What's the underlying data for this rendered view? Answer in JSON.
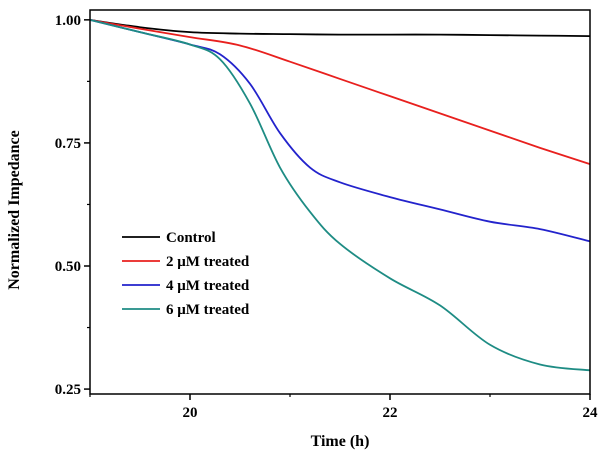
{
  "chart_data": {
    "type": "line",
    "title": "",
    "xlabel": "Time (h)",
    "ylabel": "Normalized Impedance",
    "xlim": [
      19.0,
      24.0
    ],
    "ylim": [
      0.24,
      1.02
    ],
    "xticks": [
      20,
      22,
      24
    ],
    "xtick_labels": [
      "20",
      "22",
      "24"
    ],
    "yticks": [
      0.25,
      0.5,
      0.75,
      1.0
    ],
    "ytick_labels": [
      "0.25",
      "0.50",
      "0.75",
      "1.00"
    ],
    "grid": false,
    "legend": "center-left",
    "series": [
      {
        "name": "Control",
        "color": "#000000",
        "x": [
          19.0,
          19.5,
          20.0,
          20.5,
          21.0,
          21.5,
          22.0,
          22.5,
          23.0,
          23.5,
          24.0
        ],
        "y": [
          1.0,
          0.985,
          0.975,
          0.972,
          0.971,
          0.97,
          0.97,
          0.97,
          0.969,
          0.968,
          0.967
        ]
      },
      {
        "name": "2 μM treated",
        "color": "#e8201e",
        "x": [
          19.0,
          19.5,
          20.0,
          20.5,
          21.0,
          21.5,
          22.0,
          22.5,
          23.0,
          23.5,
          24.0
        ],
        "y": [
          1.0,
          0.982,
          0.965,
          0.948,
          0.915,
          0.88,
          0.845,
          0.81,
          0.775,
          0.74,
          0.707
        ]
      },
      {
        "name": "4 μM treated",
        "color": "#2323cc",
        "x": [
          19.0,
          19.5,
          20.0,
          20.3,
          20.6,
          20.9,
          21.2,
          21.5,
          22.0,
          22.5,
          23.0,
          23.5,
          24.0
        ],
        "y": [
          1.0,
          0.975,
          0.95,
          0.93,
          0.87,
          0.77,
          0.7,
          0.67,
          0.64,
          0.615,
          0.59,
          0.575,
          0.55
        ]
      },
      {
        "name": "6 μM treated",
        "color": "#1e8c84",
        "x": [
          19.0,
          19.5,
          20.0,
          20.3,
          20.6,
          20.9,
          21.2,
          21.5,
          22.0,
          22.5,
          23.0,
          23.5,
          24.0
        ],
        "y": [
          1.0,
          0.975,
          0.95,
          0.92,
          0.83,
          0.7,
          0.61,
          0.545,
          0.475,
          0.42,
          0.34,
          0.3,
          0.288
        ]
      }
    ]
  }
}
